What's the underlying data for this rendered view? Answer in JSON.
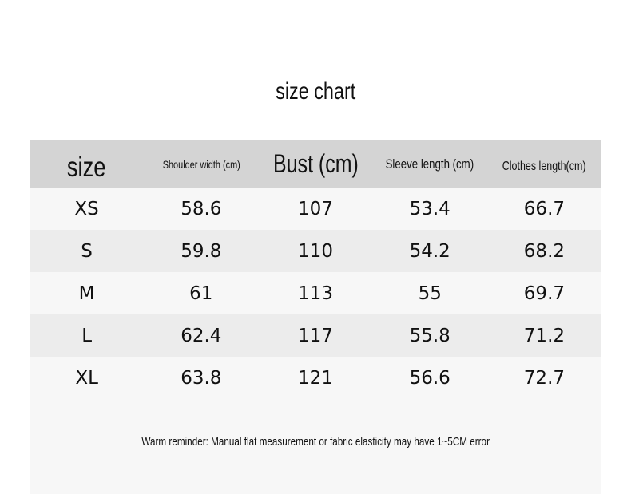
{
  "title": "size chart",
  "table": {
    "headers": [
      "size",
      "Shoulder width (cm)",
      "Bust (cm)",
      "Sleeve length (cm)",
      "Clothes length(cm)"
    ],
    "rows": [
      [
        "XS",
        "58.6",
        "107",
        "53.4",
        "66.7"
      ],
      [
        "S",
        "59.8",
        "110",
        "54.2",
        "68.2"
      ],
      [
        "M",
        "61",
        "113",
        "55",
        "69.7"
      ],
      [
        "L",
        "62.4",
        "117",
        "55.8",
        "71.2"
      ],
      [
        "XL",
        "63.8",
        "121",
        "56.6",
        "72.7"
      ]
    ]
  },
  "note": "Warm reminder: Manual flat measurement or fabric elasticity may have 1~5CM error",
  "colors": {
    "header_bg": "#d4d4d4",
    "row_light": "#f7f7f7",
    "row_dark": "#ececec"
  }
}
